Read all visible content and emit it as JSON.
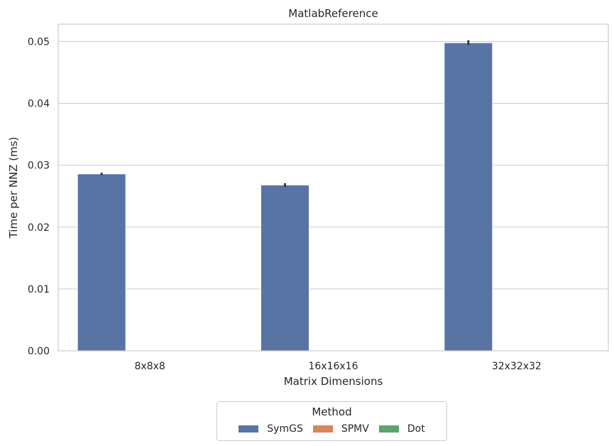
{
  "chart_data": {
    "type": "bar",
    "title": "MatlabReference",
    "xlabel": "Matrix Dimensions",
    "ylabel": "Time per NNZ (ms)",
    "categories": [
      "8x8x8",
      "16x16x16",
      "32x32x32"
    ],
    "series": [
      {
        "name": "SymGS",
        "values": [
          0.0286,
          0.0268,
          0.0498
        ],
        "err": [
          0.0002,
          0.0003,
          0.0004
        ],
        "color": "#5874a5"
      },
      {
        "name": "SPMV",
        "values": [
          0,
          0,
          0
        ],
        "color": "#d88358"
      },
      {
        "name": "Dot",
        "values": [
          0,
          0,
          0
        ],
        "color": "#5ea46c"
      }
    ],
    "ylim": [
      0,
      0.0528
    ],
    "yticks": [
      "0.00",
      "0.01",
      "0.02",
      "0.03",
      "0.04",
      "0.05"
    ],
    "grid": true,
    "legend": {
      "title": "Method",
      "placement": "bottom-center"
    }
  }
}
